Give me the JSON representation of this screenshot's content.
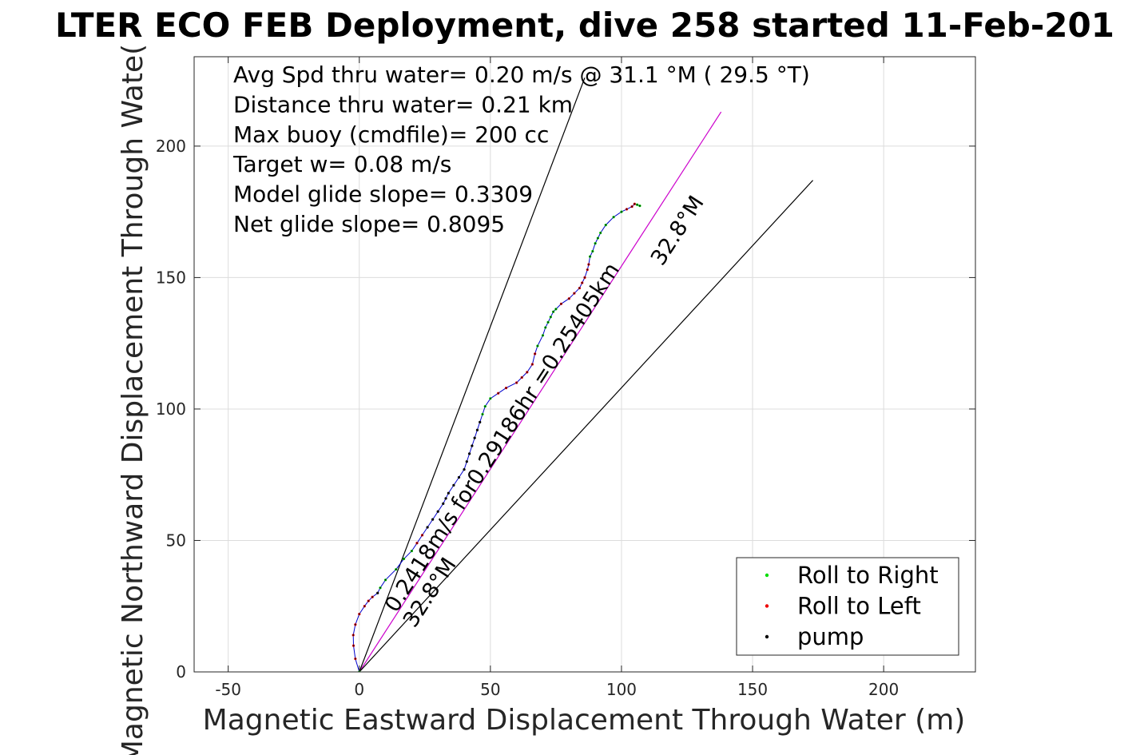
{
  "chart_data": {
    "type": "scatter",
    "title": "LTER ECO FEB Deployment, dive 258 started 11-Feb-201",
    "xlabel": "Magnetic Eastward Displacement Through Water (m)",
    "ylabel": "Magnetic Northward Displacement Through Wate(",
    "xlim": [
      -63,
      235
    ],
    "ylim": [
      0,
      234
    ],
    "xticks": [
      -50,
      0,
      50,
      100,
      150,
      200
    ],
    "xtick_labels": [
      "-50",
      "0",
      "50",
      "100",
      "150",
      "200"
    ],
    "yticks": [
      0,
      50,
      100,
      150,
      200
    ],
    "ytick_labels": [
      "0",
      "50",
      "100",
      "150",
      "200"
    ],
    "grid": true,
    "legend_position": "bottom-right",
    "legend": [
      {
        "label": "Roll to Right",
        "color": "#00dd00"
      },
      {
        "label": "Roll to Left",
        "color": "#ee0000"
      },
      {
        "label": "pump",
        "color": "#000000"
      }
    ],
    "annotations": [
      "Avg Spd thru water=  0.20 m/s @  31.1 °M ( 29.5 °T)",
      "Distance thru water=  0.21 km",
      "Max buoy (cmdfile)= 200 cc",
      "Target w= 0.08 m/s",
      "Model glide slope= 0.3309",
      "Net glide slope= 0.8095"
    ],
    "line_labels": {
      "heading_upper": "32.8°M",
      "heading_lower": "32.8°M",
      "speed": "0.2418m/s for0.29186hr =0.25405km"
    },
    "reference_lines": [
      {
        "name": "heading",
        "color": "#cc00cc",
        "x": [
          0,
          138
        ],
        "y": [
          0,
          213
        ]
      },
      {
        "name": "cone-left",
        "color": "#000000",
        "x": [
          0,
          86
        ],
        "y": [
          0,
          226
        ]
      },
      {
        "name": "cone-right",
        "color": "#000000",
        "x": [
          0,
          173
        ],
        "y": [
          0,
          187
        ]
      }
    ],
    "track": {
      "color": "#0000cc",
      "x": [
        0,
        -1.5,
        -2.2,
        -2.3,
        -1.5,
        0,
        2,
        3.5,
        5,
        7,
        8,
        10,
        14,
        17,
        20,
        22,
        24,
        26,
        28,
        30,
        32,
        33,
        34,
        36,
        38,
        40,
        41,
        42,
        43,
        44,
        45,
        46,
        47,
        48,
        50,
        53,
        56,
        60,
        62,
        64,
        66,
        67,
        68,
        70,
        71,
        72,
        73,
        74,
        75,
        77,
        80,
        82,
        84,
        85,
        86,
        87,
        87.5,
        88,
        89,
        90,
        91,
        92,
        94,
        97,
        100,
        102,
        104,
        105,
        106,
        107
      ],
      "y": [
        0,
        5,
        10,
        14,
        18,
        22,
        25,
        27,
        28.5,
        30,
        32,
        35,
        39,
        43,
        46,
        49,
        52,
        55,
        58,
        61,
        64,
        66,
        68,
        71,
        74,
        77,
        80,
        83,
        86,
        89,
        92,
        95,
        98,
        101,
        104,
        106,
        108,
        110,
        112,
        114,
        117,
        121,
        124,
        128,
        131,
        133,
        135,
        137,
        138,
        140,
        142,
        144,
        146,
        148,
        150,
        153,
        155,
        158,
        160,
        163,
        165,
        167,
        170,
        173,
        175,
        176,
        177,
        178,
        177.7,
        177.3
      ],
      "roll": [
        "R",
        "L",
        "L",
        "L",
        "L",
        "L",
        "L",
        "L",
        "L",
        "P",
        "R",
        "R",
        "R",
        "R",
        "R",
        "L",
        "L",
        "P",
        "P",
        "P",
        "P",
        "P",
        "P",
        "P",
        "P",
        "P",
        "P",
        "P",
        "P",
        "P",
        "P",
        "P",
        "R",
        "R",
        "R",
        "L",
        "L",
        "L",
        "L",
        "L",
        "L",
        "L",
        "R",
        "R",
        "R",
        "R",
        "R",
        "R",
        "R",
        "L",
        "L",
        "L",
        "L",
        "L",
        "L",
        "L",
        "L",
        "R",
        "R",
        "R",
        "R",
        "R",
        "R",
        "R",
        "R",
        "L",
        "L",
        "L",
        "R",
        "R"
      ]
    }
  }
}
